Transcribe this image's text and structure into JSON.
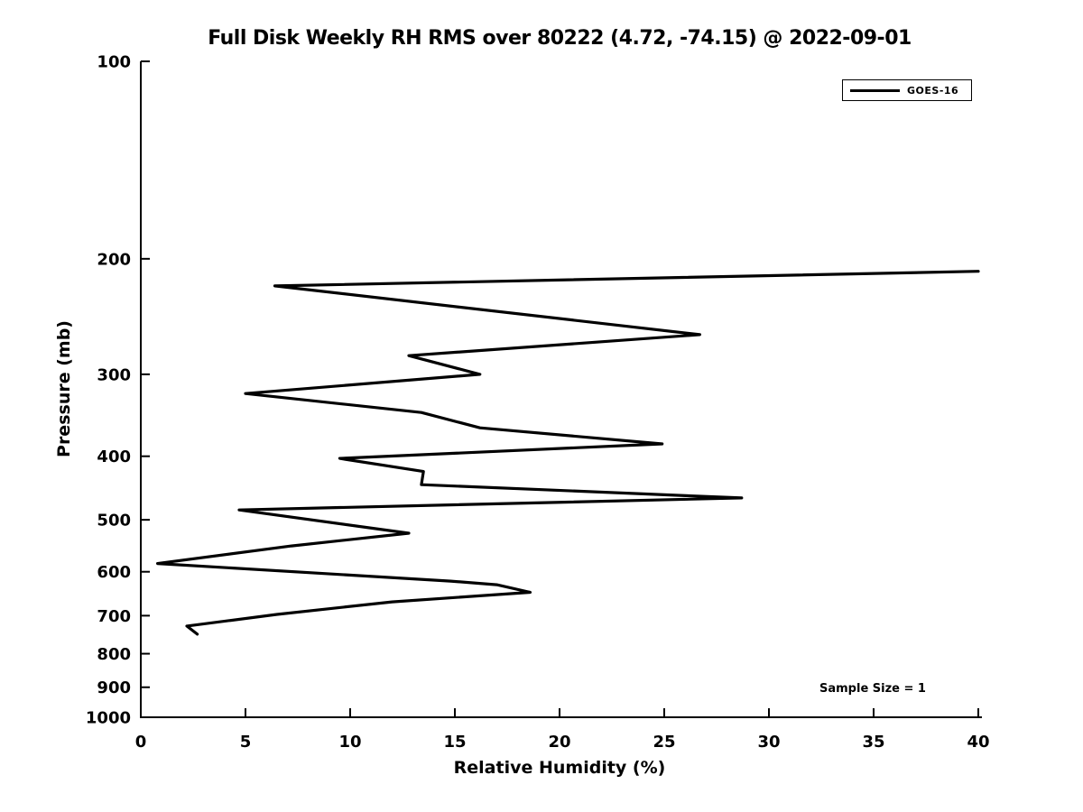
{
  "figure": {
    "background": "#ffffff",
    "foreground": "#000000"
  },
  "chart_data": {
    "type": "line",
    "title": "Full Disk Weekly RH RMS over 80222 (4.72, -74.15) @ 2022-09-01",
    "xlabel": "Relative Humidity (%)",
    "ylabel": "Pressure (mb)",
    "annotation": "Sample Size = 1",
    "grid": false,
    "x_axis": {
      "scale": "linear",
      "min": 0,
      "max": 40,
      "ticks": [
        0,
        5,
        10,
        15,
        20,
        25,
        30,
        35,
        40
      ]
    },
    "y_axis": {
      "scale": "log",
      "inverted": true,
      "min": 100,
      "max": 1000,
      "ticks": [
        100,
        200,
        300,
        400,
        500,
        600,
        700,
        800,
        900,
        1000
      ]
    },
    "legend": {
      "position": "upper-right",
      "entries": [
        {
          "label": "GOES-16",
          "color": "#000000"
        }
      ]
    },
    "series": [
      {
        "name": "GOES-16",
        "color": "#000000",
        "line_width": 3.2,
        "points_rh_pressure": [
          [
            40.0,
            209
          ],
          [
            6.4,
            220
          ],
          [
            26.7,
            261
          ],
          [
            12.8,
            281
          ],
          [
            16.2,
            300
          ],
          [
            5.0,
            321
          ],
          [
            13.4,
            343
          ],
          [
            16.2,
            362
          ],
          [
            24.9,
            383
          ],
          [
            9.5,
            403
          ],
          [
            13.5,
            422
          ],
          [
            13.4,
            442
          ],
          [
            28.7,
            463
          ],
          [
            4.7,
            483
          ],
          [
            12.8,
            524
          ],
          [
            7.2,
            548
          ],
          [
            0.8,
            583
          ],
          [
            14.8,
            620
          ],
          [
            17.0,
            628
          ],
          [
            18.6,
            645
          ],
          [
            12.0,
            667
          ],
          [
            6.5,
            697
          ],
          [
            2.2,
            726
          ],
          [
            2.7,
            747
          ]
        ]
      }
    ]
  }
}
